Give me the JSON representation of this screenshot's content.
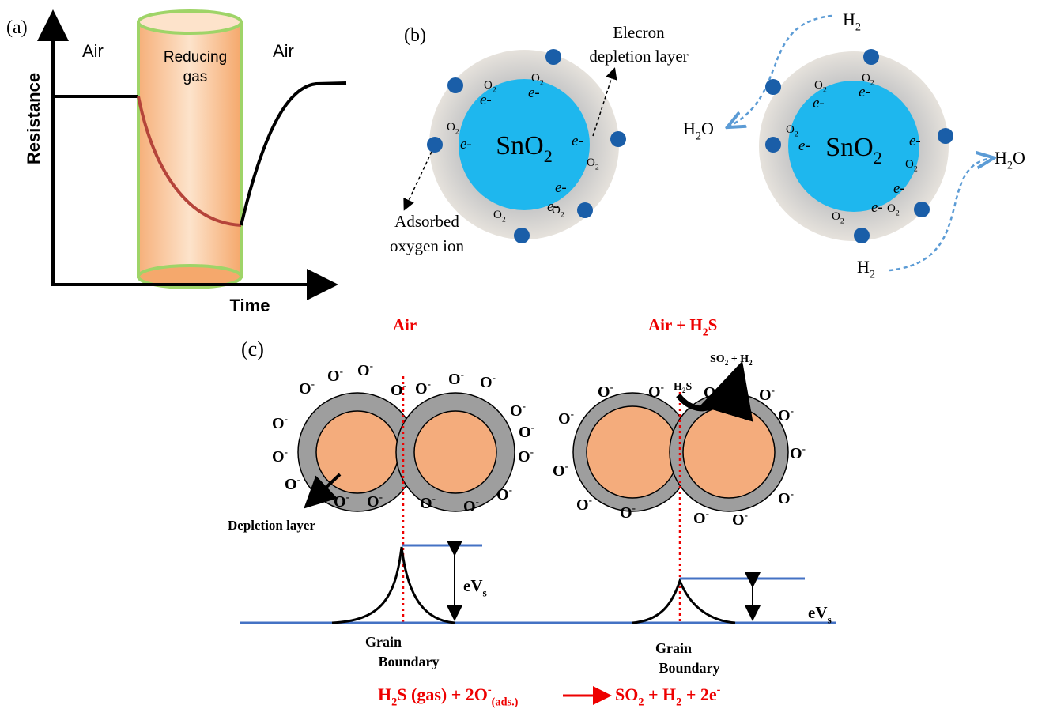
{
  "panel_a": {
    "label": "(a)",
    "left_region": "Air",
    "gas_region": [
      "Reducing",
      "gas"
    ],
    "right_region": "Air",
    "y_axis": "Resistance",
    "x_axis": "Time"
  },
  "panel_b": {
    "label": "(b)",
    "grain": [
      "SnO",
      {
        "sub": "2"
      }
    ],
    "depletion_callout": [
      "Elecron",
      "depletion layer"
    ],
    "oxygen_callout": [
      "Adsorbed",
      "oxygen ion"
    ],
    "oxygen": [
      "O",
      {
        "sub": "2"
      }
    ],
    "electron": "e-",
    "hydrogen": [
      "H",
      {
        "sub": "2"
      }
    ],
    "water": [
      "H",
      {
        "sub": "2"
      },
      "O"
    ]
  },
  "panel_c": {
    "label": "(c)",
    "air_title": "Air",
    "gas_title": [
      "Air + H",
      {
        "sub": "2"
      },
      "S"
    ],
    "products": [
      "SO",
      {
        "sub": "2"
      },
      " + H",
      {
        "sub": "2"
      }
    ],
    "reactant": [
      "H",
      {
        "sub": "2"
      },
      "S"
    ],
    "ion": [
      "O",
      {
        "sup": "-"
      }
    ],
    "depletion": "Depletion layer",
    "barrier": [
      "eV",
      {
        "sub": "s"
      }
    ],
    "grain_boundary": [
      "Grain",
      "Boundary"
    ],
    "equation_left": [
      "H",
      {
        "sub": "2"
      },
      "S (gas) + 2O",
      {
        "sup": "-"
      },
      {
        "sub": "(ads.)"
      }
    ],
    "equation_right": [
      "SO",
      {
        "sub": "2"
      },
      " + H",
      {
        "sub": "2"
      },
      " + 2e",
      {
        "sup": "-"
      }
    ]
  }
}
